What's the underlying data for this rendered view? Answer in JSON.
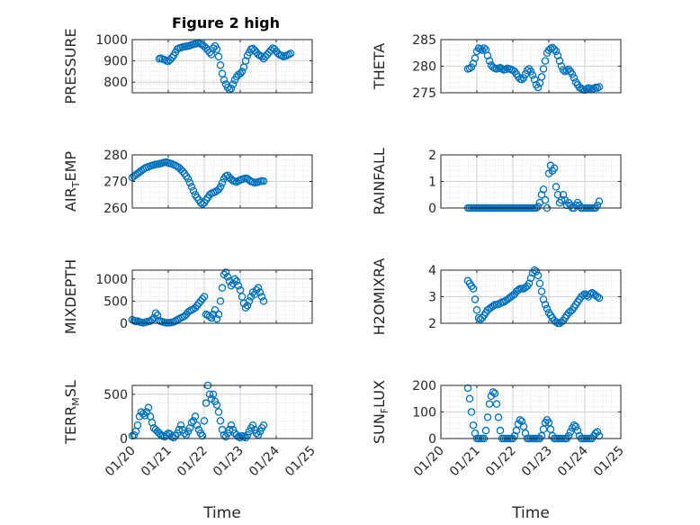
{
  "figure": {
    "title": "Figure 2 high",
    "marker_color": "#0072BD"
  },
  "chart_data": [
    {
      "type": "scatter",
      "ylabel": "PRESSURE",
      "ylabel_sub": null,
      "ylim": [
        750,
        1000
      ],
      "yticks": [
        800,
        900,
        1000
      ],
      "ytick_labels": [
        "800",
        "900",
        "1000"
      ],
      "x": [
        0.75,
        0.8,
        0.85,
        0.9,
        0.95,
        1.0,
        1.05,
        1.1,
        1.15,
        1.2,
        1.25,
        1.3,
        1.35,
        1.4,
        1.45,
        1.5,
        1.55,
        1.6,
        1.65,
        1.7,
        1.75,
        1.8,
        1.85,
        1.9,
        1.95,
        2.0,
        2.05,
        2.1,
        2.15,
        2.2,
        2.25,
        2.3,
        2.35,
        2.4,
        2.45,
        2.5,
        2.55,
        2.6,
        2.65,
        2.7,
        2.75,
        2.8,
        2.85,
        2.9,
        2.95,
        3.0,
        3.05,
        3.1,
        3.15,
        3.2,
        3.25,
        3.3,
        3.35,
        3.4,
        3.45,
        3.5,
        3.55,
        3.6,
        3.65,
        3.7,
        3.75,
        3.8,
        3.85,
        3.9,
        3.95,
        4.0,
        4.05,
        4.1,
        4.15,
        4.2,
        4.25,
        4.3,
        4.35,
        4.4
      ],
      "y": [
        910,
        912,
        908,
        905,
        900,
        898,
        905,
        915,
        925,
        940,
        955,
        960,
        962,
        965,
        967,
        968,
        970,
        972,
        975,
        978,
        980,
        982,
        985,
        980,
        975,
        968,
        960,
        950,
        940,
        930,
        960,
        970,
        955,
        920,
        880,
        840,
        810,
        790,
        775,
        765,
        770,
        790,
        810,
        825,
        835,
        840,
        850,
        870,
        900,
        925,
        940,
        955,
        958,
        950,
        940,
        930,
        925,
        920,
        910,
        920,
        930,
        940,
        950,
        960,
        955,
        945,
        935,
        928,
        925,
        920,
        922,
        926,
        930,
        935
      ]
    },
    {
      "type": "scatter",
      "ylabel": "THETA",
      "ylabel_sub": null,
      "ylim": [
        275,
        285
      ],
      "yticks": [
        275,
        280,
        285
      ],
      "ytick_labels": [
        "275",
        "280",
        "285"
      ],
      "x": [
        0.75,
        0.8,
        0.85,
        0.9,
        0.95,
        1.0,
        1.05,
        1.1,
        1.15,
        1.2,
        1.25,
        1.3,
        1.35,
        1.4,
        1.45,
        1.5,
        1.55,
        1.6,
        1.65,
        1.7,
        1.75,
        1.8,
        1.85,
        1.9,
        1.95,
        2.0,
        2.05,
        2.1,
        2.15,
        2.2,
        2.25,
        2.3,
        2.35,
        2.4,
        2.45,
        2.5,
        2.55,
        2.6,
        2.65,
        2.7,
        2.75,
        2.8,
        2.85,
        2.9,
        2.95,
        3.0,
        3.05,
        3.1,
        3.15,
        3.2,
        3.25,
        3.3,
        3.35,
        3.4,
        3.45,
        3.5,
        3.55,
        3.6,
        3.65,
        3.7,
        3.75,
        3.8,
        3.85,
        3.9,
        3.95,
        4.0,
        4.05,
        4.1,
        4.15,
        4.2,
        4.25,
        4.3,
        4.35,
        4.4
      ],
      "y": [
        279.5,
        279.6,
        279.8,
        280.5,
        281.5,
        282.8,
        283.4,
        283.2,
        283.0,
        283.4,
        283.1,
        282.0,
        281.0,
        280.2,
        279.8,
        279.6,
        279.5,
        279.6,
        279.7,
        279.5,
        279.3,
        279.4,
        279.6,
        279.5,
        279.4,
        279.2,
        279.0,
        278.5,
        278.0,
        277.6,
        277.5,
        277.8,
        278.5,
        279.2,
        279.5,
        279.0,
        278.3,
        277.5,
        276.5,
        276.0,
        276.8,
        278.0,
        279.5,
        281.0,
        282.5,
        283.0,
        283.3,
        283.5,
        283.2,
        282.8,
        282.0,
        281.0,
        280.0,
        279.3,
        279.0,
        279.2,
        279.4,
        279.0,
        278.5,
        277.8,
        277.0,
        276.5,
        276.0,
        275.8,
        275.6,
        275.5,
        275.7,
        275.9,
        275.8,
        275.6,
        275.8,
        276.0,
        275.9,
        276.1
      ]
    },
    {
      "type": "scatter",
      "ylabel": "AIR",
      "ylabel_sub": "T",
      "ylabel_after": "EMP",
      "ylim": [
        260,
        280
      ],
      "yticks": [
        260,
        270,
        280
      ],
      "ytick_labels": [
        "260",
        "270",
        "280"
      ],
      "x": [
        0.0,
        0.05,
        0.1,
        0.15,
        0.2,
        0.25,
        0.3,
        0.35,
        0.4,
        0.45,
        0.5,
        0.55,
        0.6,
        0.65,
        0.7,
        0.75,
        0.8,
        0.85,
        0.9,
        0.95,
        1.0,
        1.05,
        1.1,
        1.15,
        1.2,
        1.25,
        1.3,
        1.35,
        1.4,
        1.45,
        1.5,
        1.55,
        1.6,
        1.65,
        1.7,
        1.75,
        1.8,
        1.85,
        1.9,
        1.95,
        2.0,
        2.05,
        2.1,
        2.15,
        2.2,
        2.25,
        2.3,
        2.35,
        2.4,
        2.45,
        2.5,
        2.55,
        2.6,
        2.65,
        2.7,
        2.75,
        2.8,
        2.85,
        2.9,
        2.95,
        3.0,
        3.05,
        3.1,
        3.15,
        3.2,
        3.25,
        3.3,
        3.35,
        3.4,
        3.45,
        3.5,
        3.55,
        3.6,
        3.65
      ],
      "y": [
        271.5,
        272.0,
        272.5,
        273.0,
        273.5,
        274.0,
        274.5,
        275.0,
        275.3,
        275.5,
        275.8,
        276.0,
        276.2,
        276.4,
        276.5,
        276.6,
        276.8,
        277.0,
        277.2,
        277.3,
        277.0,
        276.8,
        276.6,
        276.3,
        276.0,
        275.6,
        275.2,
        274.5,
        273.8,
        273.0,
        272.0,
        271.0,
        269.5,
        268.0,
        266.5,
        265.0,
        264.0,
        263.0,
        262.0,
        261.5,
        262.0,
        263.0,
        264.0,
        265.0,
        265.5,
        265.8,
        266.0,
        266.5,
        267.0,
        268.0,
        269.5,
        271.0,
        272.0,
        272.3,
        271.5,
        270.8,
        270.3,
        270.0,
        269.8,
        270.2,
        270.5,
        270.8,
        271.0,
        271.2,
        271.0,
        270.5,
        270.0,
        269.8,
        269.5,
        269.6,
        269.8,
        270.0,
        270.2,
        270.1
      ]
    },
    {
      "type": "scatter",
      "ylabel": "RAINFALL",
      "ylabel_sub": null,
      "ylim": [
        0,
        2
      ],
      "yticks": [
        0,
        1,
        2
      ],
      "ytick_labels": [
        "0",
        "1",
        "2"
      ],
      "x": [
        0.75,
        0.8,
        0.85,
        0.9,
        0.95,
        1.0,
        1.05,
        1.1,
        1.15,
        1.2,
        1.25,
        1.3,
        1.35,
        1.4,
        1.45,
        1.5,
        1.55,
        1.6,
        1.65,
        1.7,
        1.75,
        1.8,
        1.85,
        1.9,
        1.95,
        2.0,
        2.05,
        2.1,
        2.15,
        2.2,
        2.25,
        2.3,
        2.35,
        2.4,
        2.45,
        2.5,
        2.55,
        2.6,
        2.65,
        2.7,
        2.75,
        2.8,
        2.85,
        2.9,
        2.95,
        3.0,
        3.05,
        3.1,
        3.15,
        3.2,
        3.25,
        3.3,
        3.35,
        3.4,
        3.45,
        3.5,
        3.55,
        3.6,
        3.65,
        3.7,
        3.75,
        3.8,
        3.85,
        3.9,
        3.95,
        4.0,
        4.05,
        4.1,
        4.15,
        4.2,
        4.25,
        4.3,
        4.35,
        4.4
      ],
      "y": [
        0,
        0,
        0,
        0,
        0,
        0,
        0,
        0,
        0,
        0,
        0,
        0,
        0,
        0,
        0,
        0,
        0,
        0,
        0,
        0,
        0,
        0,
        0,
        0,
        0,
        0,
        0,
        0,
        0,
        0,
        0,
        0,
        0,
        0,
        0,
        0,
        0,
        0,
        0,
        0.05,
        0.2,
        0.5,
        0.7,
        0.3,
        0.0,
        1.3,
        1.6,
        1.4,
        1.5,
        0.8,
        0.5,
        0.2,
        0.3,
        0.5,
        0.3,
        0.1,
        0.2,
        0.1,
        0.0,
        0.0,
        0.1,
        0.2,
        0.1,
        0.0,
        0.0,
        0.0,
        0.0,
        0.0,
        0.0,
        0.0,
        0.0,
        0.0,
        0.1,
        0.25
      ]
    },
    {
      "type": "scatter",
      "ylabel": "MIXDEPTH",
      "ylabel_sub": null,
      "ylim": [
        0,
        1200
      ],
      "yticks": [
        0,
        500,
        1000
      ],
      "ytick_labels": [
        "0",
        "500",
        "1000"
      ],
      "x": [
        0.0,
        0.05,
        0.1,
        0.15,
        0.2,
        0.25,
        0.3,
        0.35,
        0.4,
        0.45,
        0.5,
        0.55,
        0.6,
        0.65,
        0.7,
        0.75,
        0.8,
        0.85,
        0.9,
        0.95,
        1.0,
        1.05,
        1.1,
        1.15,
        1.2,
        1.25,
        1.3,
        1.35,
        1.4,
        1.45,
        1.5,
        1.55,
        1.6,
        1.65,
        1.7,
        1.75,
        1.8,
        1.85,
        1.9,
        1.95,
        2.0,
        2.05,
        2.1,
        2.15,
        2.2,
        2.25,
        2.3,
        2.35,
        2.4,
        2.45,
        2.5,
        2.55,
        2.6,
        2.65,
        2.7,
        2.75,
        2.8,
        2.85,
        2.9,
        2.95,
        3.0,
        3.05,
        3.1,
        3.15,
        3.2,
        3.25,
        3.3,
        3.35,
        3.4,
        3.45,
        3.5,
        3.55,
        3.6,
        3.65
      ],
      "y": [
        80,
        60,
        40,
        50,
        30,
        20,
        10,
        20,
        30,
        40,
        50,
        80,
        120,
        230,
        180,
        60,
        40,
        30,
        20,
        10,
        10,
        15,
        20,
        30,
        50,
        80,
        100,
        120,
        140,
        160,
        200,
        250,
        280,
        300,
        320,
        350,
        400,
        450,
        500,
        550,
        600,
        200,
        180,
        150,
        120,
        200,
        300,
        100,
        200,
        500,
        800,
        1100,
        1150,
        1050,
        950,
        850,
        900,
        1000,
        950,
        850,
        750,
        600,
        450,
        350,
        400,
        500,
        600,
        700,
        650,
        750,
        800,
        700,
        600,
        500
      ]
    },
    {
      "type": "scatter",
      "ylabel": "H2OMIXRA",
      "ylabel_sub": null,
      "ylim": [
        2,
        4
      ],
      "yticks": [
        2,
        3,
        4
      ],
      "ytick_labels": [
        "2",
        "3",
        "4"
      ],
      "x": [
        0.75,
        0.8,
        0.85,
        0.9,
        0.95,
        1.0,
        1.05,
        1.1,
        1.15,
        1.2,
        1.25,
        1.3,
        1.35,
        1.4,
        1.45,
        1.5,
        1.55,
        1.6,
        1.65,
        1.7,
        1.75,
        1.8,
        1.85,
        1.9,
        1.95,
        2.0,
        2.05,
        2.1,
        2.15,
        2.2,
        2.25,
        2.3,
        2.35,
        2.4,
        2.45,
        2.5,
        2.55,
        2.6,
        2.65,
        2.7,
        2.75,
        2.8,
        2.85,
        2.9,
        2.95,
        3.0,
        3.05,
        3.1,
        3.15,
        3.2,
        3.25,
        3.3,
        3.35,
        3.4,
        3.45,
        3.5,
        3.55,
        3.6,
        3.65,
        3.7,
        3.75,
        3.8,
        3.85,
        3.9,
        3.95,
        4.0,
        4.05,
        4.1,
        4.15,
        4.2,
        4.25,
        4.3,
        4.35,
        4.4
      ],
      "y": [
        3.6,
        3.5,
        3.4,
        3.3,
        2.9,
        2.5,
        2.2,
        2.15,
        2.2,
        2.3,
        2.4,
        2.5,
        2.55,
        2.6,
        2.65,
        2.7,
        2.7,
        2.72,
        2.75,
        2.8,
        2.8,
        2.85,
        2.9,
        2.95,
        3.0,
        3.05,
        3.1,
        3.2,
        3.25,
        3.3,
        3.3,
        3.3,
        3.35,
        3.4,
        3.5,
        3.7,
        3.9,
        4.0,
        3.95,
        3.8,
        3.5,
        3.2,
        2.9,
        2.7,
        2.55,
        2.4,
        2.3,
        2.2,
        2.1,
        2.05,
        2.0,
        2.0,
        2.05,
        2.1,
        2.2,
        2.3,
        2.4,
        2.45,
        2.5,
        2.6,
        2.7,
        2.8,
        2.9,
        3.0,
        3.05,
        3.1,
        3.05,
        3.0,
        3.1,
        3.15,
        3.1,
        3.05,
        3.0,
        2.95
      ]
    },
    {
      "type": "scatter",
      "ylabel": "TERR",
      "ylabel_sub": "M",
      "ylabel_after": "SL",
      "ylim": [
        0,
        600
      ],
      "yticks": [
        0,
        500
      ],
      "ytick_labels": [
        "0",
        "500"
      ],
      "x": [
        0.0,
        0.05,
        0.1,
        0.15,
        0.2,
        0.25,
        0.3,
        0.35,
        0.4,
        0.45,
        0.5,
        0.55,
        0.6,
        0.65,
        0.7,
        0.75,
        0.8,
        0.85,
        0.9,
        0.95,
        1.0,
        1.05,
        1.1,
        1.15,
        1.2,
        1.25,
        1.3,
        1.35,
        1.4,
        1.45,
        1.5,
        1.55,
        1.6,
        1.65,
        1.7,
        1.75,
        1.8,
        1.85,
        1.9,
        1.95,
        2.0,
        2.05,
        2.1,
        2.15,
        2.2,
        2.25,
        2.3,
        2.35,
        2.4,
        2.45,
        2.5,
        2.55,
        2.6,
        2.65,
        2.7,
        2.75,
        2.8,
        2.85,
        2.9,
        2.95,
        3.0,
        3.05,
        3.1,
        3.15,
        3.2,
        3.25,
        3.3,
        3.35,
        3.4,
        3.45,
        3.5,
        3.55,
        3.6,
        3.65
      ],
      "y": [
        30,
        40,
        80,
        150,
        250,
        300,
        280,
        260,
        300,
        350,
        250,
        180,
        120,
        100,
        80,
        60,
        40,
        30,
        20,
        40,
        60,
        50,
        20,
        10,
        30,
        60,
        100,
        150,
        100,
        60,
        40,
        80,
        120,
        180,
        200,
        250,
        150,
        100,
        60,
        30,
        200,
        400,
        600,
        500,
        450,
        500,
        420,
        380,
        300,
        200,
        100,
        40,
        20,
        60,
        100,
        150,
        100,
        60,
        40,
        20,
        10,
        30,
        20,
        10,
        40,
        80,
        120,
        150,
        100,
        60,
        40,
        80,
        120,
        150
      ]
    },
    {
      "type": "scatter",
      "ylabel": "SUN",
      "ylabel_sub": "F",
      "ylabel_after": "LUX",
      "ylim": [
        0,
        200
      ],
      "yticks": [
        0,
        100,
        200
      ],
      "ytick_labels": [
        "0",
        "100",
        "200"
      ],
      "x": [
        0.75,
        0.8,
        0.85,
        0.9,
        0.95,
        1.0,
        1.05,
        1.1,
        1.15,
        1.2,
        1.25,
        1.3,
        1.35,
        1.4,
        1.45,
        1.5,
        1.55,
        1.6,
        1.65,
        1.7,
        1.75,
        1.8,
        1.85,
        1.9,
        1.95,
        2.0,
        2.05,
        2.1,
        2.15,
        2.2,
        2.25,
        2.3,
        2.35,
        2.4,
        2.45,
        2.5,
        2.55,
        2.6,
        2.65,
        2.7,
        2.75,
        2.8,
        2.85,
        2.9,
        2.95,
        3.0,
        3.05,
        3.1,
        3.15,
        3.2,
        3.25,
        3.3,
        3.35,
        3.4,
        3.45,
        3.5,
        3.55,
        3.6,
        3.65,
        3.7,
        3.75,
        3.8,
        3.85,
        3.9,
        3.95,
        4.0,
        4.05,
        4.1,
        4.15,
        4.2,
        4.25,
        4.3,
        4.35,
        4.4
      ],
      "y": [
        190,
        150,
        100,
        50,
        20,
        0,
        0,
        0,
        0,
        0,
        30,
        80,
        130,
        160,
        175,
        170,
        130,
        80,
        30,
        0,
        0,
        0,
        0,
        0,
        0,
        0,
        10,
        30,
        55,
        70,
        65,
        45,
        20,
        0,
        0,
        0,
        0,
        0,
        0,
        0,
        0,
        10,
        35,
        60,
        70,
        60,
        35,
        10,
        0,
        0,
        0,
        0,
        0,
        0,
        0,
        0,
        10,
        25,
        40,
        50,
        45,
        30,
        10,
        0,
        0,
        0,
        0,
        0,
        0,
        0,
        10,
        20,
        25,
        10
      ]
    }
  ],
  "x_axis": {
    "xlim": [
      0,
      5
    ],
    "ticks": [
      0,
      1,
      2,
      3,
      4,
      5
    ],
    "tick_labels": [
      "01/20",
      "01/21",
      "01/22",
      "01/23",
      "01/24",
      "01/25"
    ],
    "label": "Time"
  }
}
